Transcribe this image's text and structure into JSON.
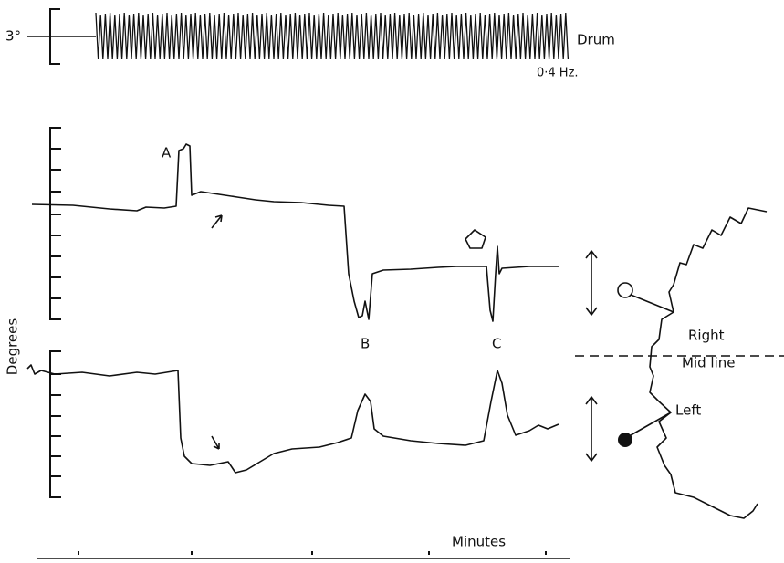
{
  "top": {
    "scale_label": "3°",
    "trace_label": "Drum",
    "frequency": "0·4 Hz."
  },
  "traces": {
    "y_label": "Degrees",
    "events": [
      "A",
      "B",
      "C"
    ]
  },
  "diagram": {
    "right": "Right",
    "midline": "Mid line",
    "left": "Left"
  },
  "time_axis": {
    "label": "Minutes"
  }
}
